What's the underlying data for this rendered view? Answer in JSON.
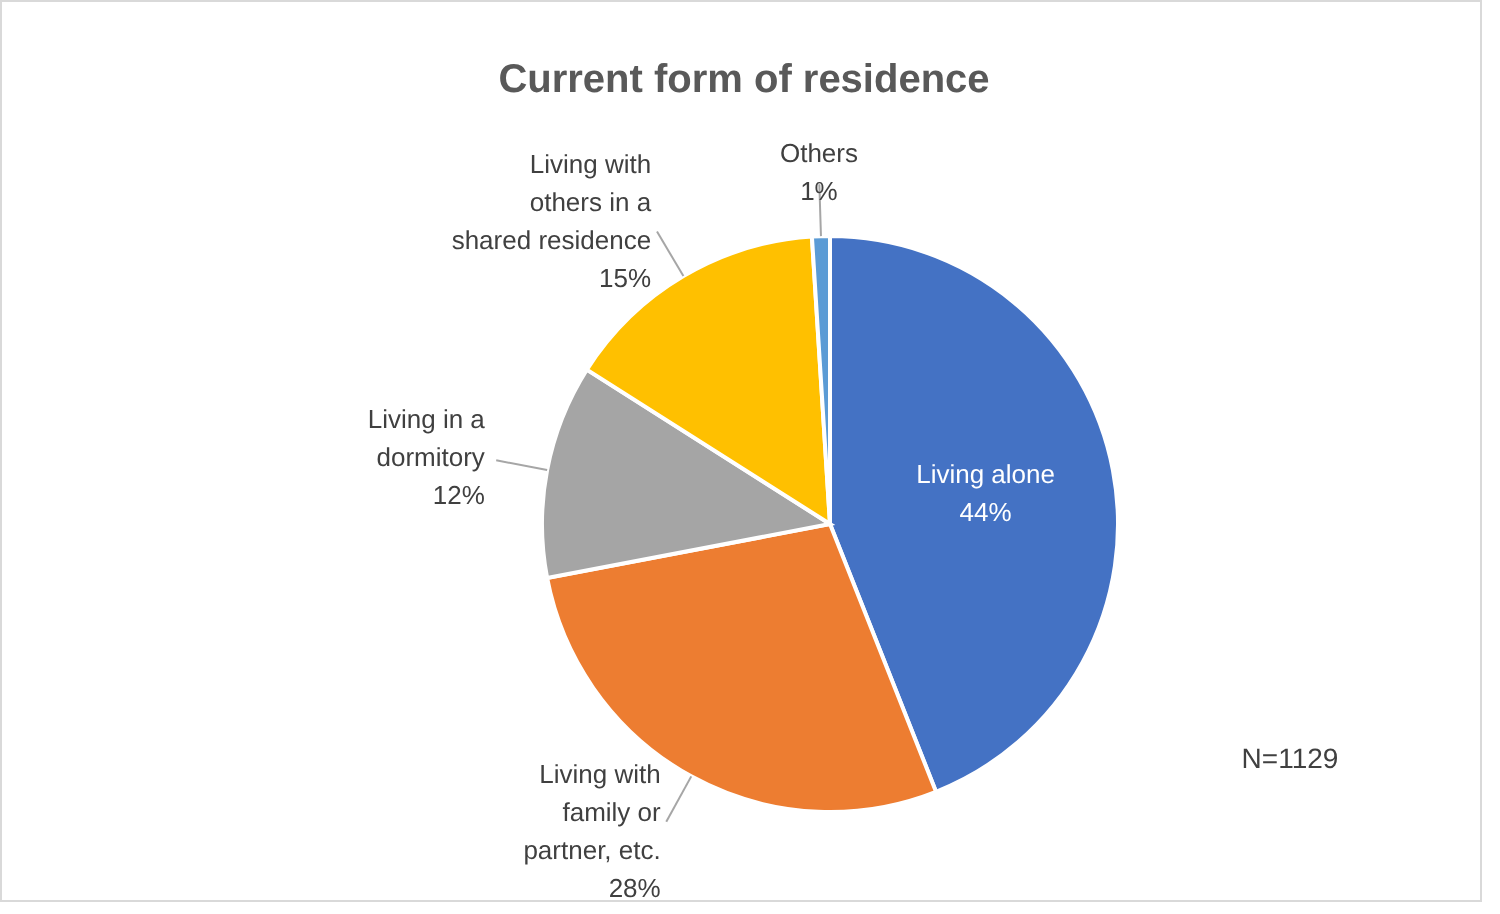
{
  "chart_data": {
    "type": "pie",
    "title": "Current form of residence",
    "categories": [
      "Living alone",
      "Living with family or partner, etc.",
      "Living in a dormitory",
      "Living with others in a shared residence",
      "Others"
    ],
    "values": [
      44,
      28,
      12,
      15,
      1
    ],
    "value_labels": [
      "44%",
      "28%",
      "12%",
      "15%",
      "1%"
    ],
    "colors": [
      "#4472c4",
      "#ed7d31",
      "#a5a5a5",
      "#ffc000",
      "#5b9bd5"
    ],
    "annotations": [
      "N=1129"
    ]
  }
}
